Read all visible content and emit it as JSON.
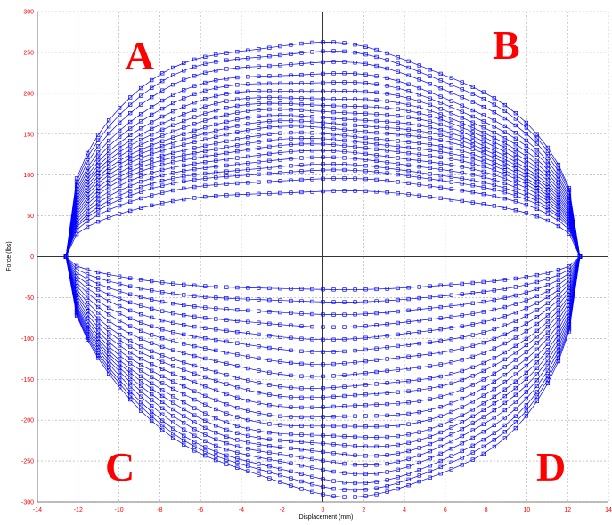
{
  "chart_data": {
    "type": "line",
    "title": "",
    "xlabel": "Displacement (mm)",
    "ylabel": "Force (lbs)",
    "xlim": [
      -14,
      14
    ],
    "ylim": [
      -300,
      300
    ],
    "x_ticks": [
      "-14",
      "-12",
      "-10",
      "-8",
      "-6",
      "-4",
      "-2",
      "0",
      "2",
      "4",
      "6",
      "8",
      "10",
      "12",
      "14"
    ],
    "y_ticks": [
      "300",
      "250",
      "200",
      "150",
      "100",
      "50",
      "0",
      "-50",
      "-100",
      "-150",
      "-200",
      "-250",
      "-300"
    ],
    "grid": true,
    "marker": "square",
    "line_color": "#0000ff",
    "annotations": [
      {
        "label": "A",
        "quadrant": "top-left"
      },
      {
        "label": "B",
        "quadrant": "top-right"
      },
      {
        "label": "C",
        "quadrant": "bottom-left"
      },
      {
        "label": "D",
        "quadrant": "bottom-right"
      }
    ],
    "x_extent": [
      -12.6,
      12.6
    ],
    "upper_branch_peaks": [
      80,
      95,
      105,
      112,
      120,
      128,
      136,
      143,
      150,
      158,
      165,
      172,
      180,
      188,
      196,
      205,
      215,
      225,
      238,
      250,
      260
    ],
    "lower_branch_peaks": [
      -40,
      -55,
      -70,
      -85,
      -100,
      -115,
      -130,
      -145,
      -160,
      -172,
      -185,
      -198,
      -210,
      -222,
      -232,
      -242,
      -252,
      -262,
      -272,
      -280,
      -288
    ]
  }
}
